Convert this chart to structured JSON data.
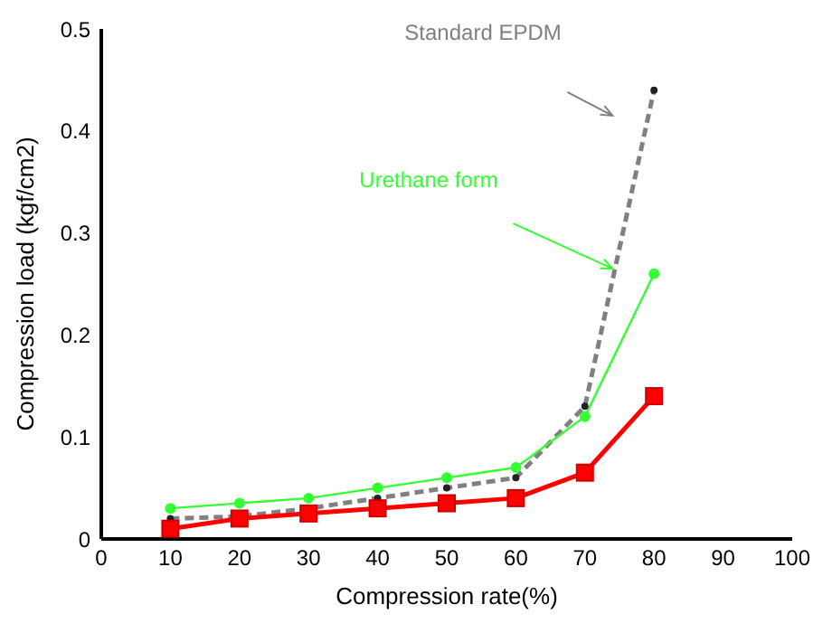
{
  "chart_data": {
    "type": "line",
    "xlabel": "Compression rate(%)",
    "ylabel": "Compression load (kgf/cm2)",
    "x": [
      10,
      20,
      30,
      40,
      50,
      60,
      70,
      80
    ],
    "series": [
      {
        "name": "Standard EPDM",
        "color": "#808080",
        "line_style": "dashed",
        "marker": "circle",
        "values": [
          0.02,
          0.022,
          0.03,
          0.04,
          0.05,
          0.06,
          0.13,
          0.44
        ]
      },
      {
        "name": "Urethane form",
        "color": "#33ff33",
        "line_style": "solid",
        "marker": "circle",
        "values": [
          0.03,
          0.035,
          0.04,
          0.05,
          0.06,
          0.07,
          0.12,
          0.26
        ]
      },
      {
        "color": "#ff0000",
        "line_style": "solid",
        "marker": "square",
        "values": [
          0.01,
          0.02,
          0.025,
          0.03,
          0.035,
          0.04,
          0.065,
          0.14
        ]
      }
    ],
    "xlim": [
      0,
      100
    ],
    "xticks": [
      0,
      10,
      20,
      30,
      40,
      50,
      60,
      70,
      80,
      90,
      100
    ],
    "ylim": [
      0,
      0.5
    ],
    "yticks": [
      0,
      0.1,
      0.2,
      0.3,
      0.4,
      0.5
    ],
    "grid": false,
    "legend": false
  }
}
